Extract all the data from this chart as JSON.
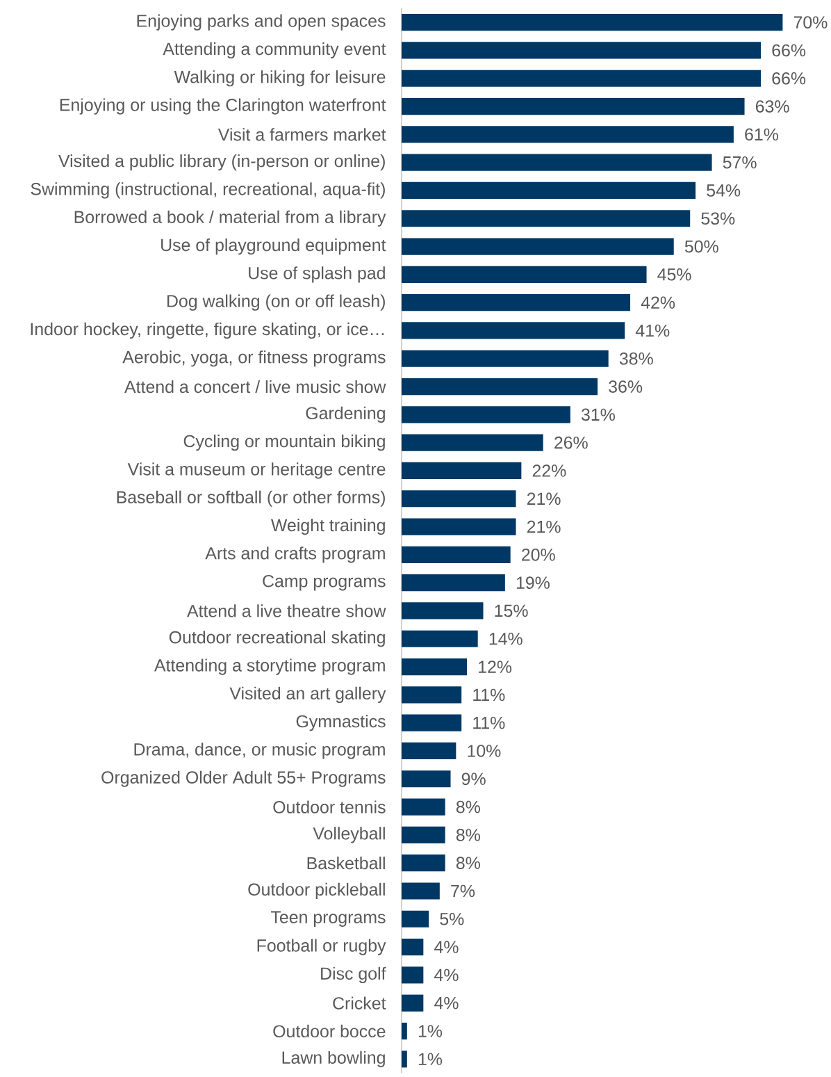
{
  "chart_data": {
    "type": "bar",
    "orientation": "horizontal",
    "categories": [
      "Enjoying parks and open spaces",
      "Attending a community event",
      "Walking or hiking for leisure",
      "Enjoying or using the Clarington waterfront",
      "Visit a farmers market",
      "Visited a public library (in-person or online)",
      "Swimming (instructional, recreational, aqua-fit)",
      "Borrowed a book / material from a library",
      "Use of playground equipment",
      "Use of splash pad",
      "Dog walking (on or off leash)",
      "Indoor hockey, ringette, figure skating, or ice…",
      "Aerobic, yoga, or fitness programs",
      "Attend a concert / live music show",
      "Gardening",
      "Cycling or mountain biking",
      "Visit a museum or heritage centre",
      "Baseball or softball (or other forms)",
      "Weight training",
      "Arts and crafts program",
      "Camp programs",
      "Attend a live theatre show",
      "Outdoor recreational skating",
      "Attending a storytime program",
      "Visited an art gallery",
      "Gymnastics",
      "Drama, dance, or music program",
      "Organized Older Adult 55+ Programs",
      "Outdoor tennis",
      "Volleyball",
      "Basketball",
      "Outdoor pickleball",
      "Teen programs",
      "Football or rugby",
      "Disc golf",
      "Cricket",
      "Outdoor bocce",
      "Lawn bowling"
    ],
    "values": [
      70,
      66,
      66,
      63,
      61,
      57,
      54,
      53,
      50,
      45,
      42,
      41,
      38,
      36,
      31,
      26,
      22,
      21,
      21,
      20,
      19,
      15,
      14,
      12,
      11,
      11,
      10,
      9,
      8,
      8,
      8,
      7,
      5,
      4,
      4,
      4,
      1,
      1
    ],
    "value_labels": [
      "70%",
      "66%",
      "66%",
      "63%",
      "61%",
      "57%",
      "54%",
      "53%",
      "50%",
      "45%",
      "42%",
      "41%",
      "38%",
      "36%",
      "31%",
      "26%",
      "22%",
      "21%",
      "21%",
      "20%",
      "19%",
      "15%",
      "14%",
      "12%",
      "11%",
      "11%",
      "10%",
      "9%",
      "8%",
      "8%",
      "8%",
      "7%",
      "5%",
      "4%",
      "4%",
      "4%",
      "1%",
      "1%"
    ],
    "color": "#003865"
  }
}
